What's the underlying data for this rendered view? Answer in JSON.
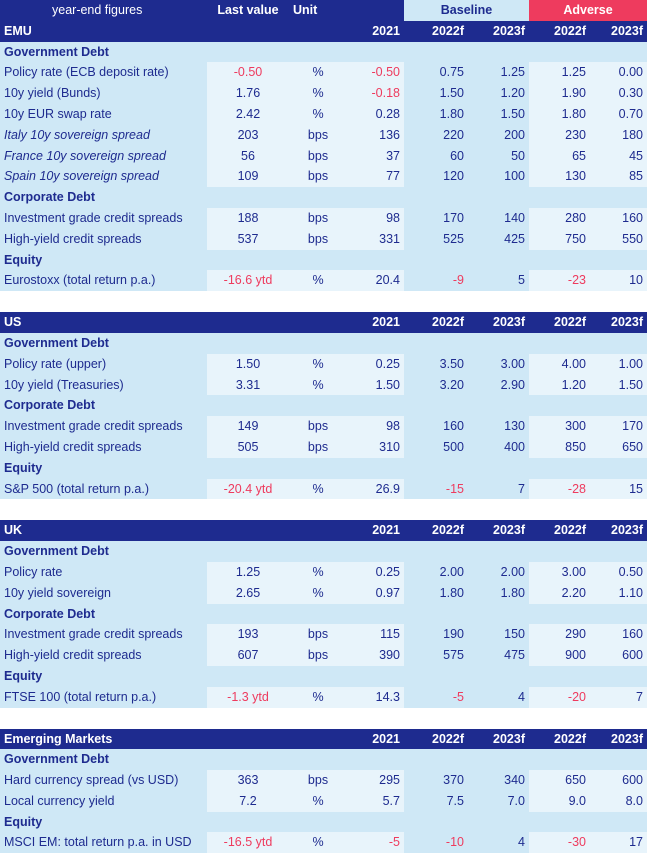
{
  "header": {
    "label": "year-end figures",
    "last_value": "Last value",
    "unit": "Unit",
    "baseline": "Baseline",
    "adverse": "Adverse"
  },
  "colors": {
    "navy": "#1e2b8f",
    "light_blue": "#cfe8f6",
    "pale_blue": "#e8f4fb",
    "red": "#ee3b5e"
  },
  "sections": [
    {
      "name": "EMU",
      "cols": [
        "2021",
        "2022f",
        "2023f",
        "2022f",
        "2023f"
      ],
      "groups": [
        {
          "label": "Government Debt",
          "rows": [
            {
              "label": "Policy rate (ECB deposit rate)",
              "italic": false,
              "values": [
                "-0.50",
                "%",
                "-0.50",
                "0.75",
                "1.25",
                "1.25",
                "0.00"
              ],
              "neg": [
                true,
                false,
                true,
                false,
                false,
                false,
                false
              ]
            },
            {
              "label": "10y yield (Bunds)",
              "italic": false,
              "values": [
                "1.76",
                "%",
                "-0.18",
                "1.50",
                "1.20",
                "1.90",
                "0.30"
              ],
              "neg": [
                false,
                false,
                true,
                false,
                false,
                false,
                false
              ]
            },
            {
              "label": "10y EUR swap rate",
              "italic": false,
              "values": [
                "2.42",
                "%",
                "0.28",
                "1.80",
                "1.50",
                "1.80",
                "0.70"
              ],
              "neg": [
                false,
                false,
                false,
                false,
                false,
                false,
                false
              ]
            },
            {
              "label": "Italy 10y sovereign spread",
              "italic": true,
              "values": [
                "203",
                "bps",
                "136",
                "220",
                "200",
                "230",
                "180"
              ],
              "neg": [
                false,
                false,
                false,
                false,
                false,
                false,
                false
              ]
            },
            {
              "label": "France 10y sovereign spread",
              "italic": true,
              "values": [
                "56",
                "bps",
                "37",
                "60",
                "50",
                "65",
                "45"
              ],
              "neg": [
                false,
                false,
                false,
                false,
                false,
                false,
                false
              ]
            },
            {
              "label": "Spain 10y sovereign spread",
              "italic": true,
              "values": [
                "109",
                "bps",
                "77",
                "120",
                "100",
                "130",
                "85"
              ],
              "neg": [
                false,
                false,
                false,
                false,
                false,
                false,
                false
              ]
            }
          ]
        },
        {
          "label": "Corporate Debt",
          "rows": [
            {
              "label": "Investment grade credit spreads",
              "italic": false,
              "values": [
                "188",
                "bps",
                "98",
                "170",
                "140",
                "280",
                "160"
              ],
              "neg": [
                false,
                false,
                false,
                false,
                false,
                false,
                false
              ]
            },
            {
              "label": "High-yield credit spreads",
              "italic": false,
              "values": [
                "537",
                "bps",
                "331",
                "525",
                "425",
                "750",
                "550"
              ],
              "neg": [
                false,
                false,
                false,
                false,
                false,
                false,
                false
              ]
            }
          ]
        },
        {
          "label": "Equity",
          "rows": [
            {
              "label": "Eurostoxx (total return p.a.)",
              "italic": false,
              "values": [
                "-16.6 ytd",
                "%",
                "20.4",
                "-9",
                "5",
                "-23",
                "10"
              ],
              "neg": [
                true,
                false,
                false,
                true,
                false,
                true,
                false
              ]
            }
          ]
        }
      ]
    },
    {
      "name": "US",
      "cols": [
        "2021",
        "2022f",
        "2023f",
        "2022f",
        "2023f"
      ],
      "groups": [
        {
          "label": "Government Debt",
          "rows": [
            {
              "label": "Policy rate (upper)",
              "italic": false,
              "values": [
                "1.50",
                "%",
                "0.25",
                "3.50",
                "3.00",
                "4.00",
                "1.00"
              ],
              "neg": [
                false,
                false,
                false,
                false,
                false,
                false,
                false
              ]
            },
            {
              "label": "10y yield (Treasuries)",
              "italic": false,
              "values": [
                "3.31",
                "%",
                "1.50",
                "3.20",
                "2.90",
                "1.20",
                "1.50"
              ],
              "neg": [
                false,
                false,
                false,
                false,
                false,
                false,
                false
              ]
            }
          ]
        },
        {
          "label": "Corporate Debt",
          "rows": [
            {
              "label": "Investment grade credit spreads",
              "italic": false,
              "values": [
                "149",
                "bps",
                "98",
                "160",
                "130",
                "300",
                "170"
              ],
              "neg": [
                false,
                false,
                false,
                false,
                false,
                false,
                false
              ]
            },
            {
              "label": "High-yield credit spreads",
              "italic": false,
              "values": [
                "505",
                "bps",
                "310",
                "500",
                "400",
                "850",
                "650"
              ],
              "neg": [
                false,
                false,
                false,
                false,
                false,
                false,
                false
              ]
            }
          ]
        },
        {
          "label": "Equity",
          "rows": [
            {
              "label": "S&P 500 (total return p.a.)",
              "italic": false,
              "values": [
                "-20.4 ytd",
                "%",
                "26.9",
                "-15",
                "7",
                "-28",
                "15"
              ],
              "neg": [
                true,
                false,
                false,
                true,
                false,
                true,
                false
              ]
            }
          ]
        }
      ]
    },
    {
      "name": "UK",
      "cols": [
        "2021",
        "2022f",
        "2023f",
        "2022f",
        "2023f"
      ],
      "groups": [
        {
          "label": "Government Debt",
          "rows": [
            {
              "label": "Policy rate",
              "italic": false,
              "values": [
                "1.25",
                "%",
                "0.25",
                "2.00",
                "2.00",
                "3.00",
                "0.50"
              ],
              "neg": [
                false,
                false,
                false,
                false,
                false,
                false,
                false
              ]
            },
            {
              "label": "10y yield sovereign",
              "italic": false,
              "values": [
                "2.65",
                "%",
                "0.97",
                "1.80",
                "1.80",
                "2.20",
                "1.10"
              ],
              "neg": [
                false,
                false,
                false,
                false,
                false,
                false,
                false
              ]
            }
          ]
        },
        {
          "label": "Corporate Debt",
          "rows": [
            {
              "label": "Investment grade credit spreads",
              "italic": false,
              "values": [
                "193",
                "bps",
                "115",
                "190",
                "150",
                "290",
                "160"
              ],
              "neg": [
                false,
                false,
                false,
                false,
                false,
                false,
                false
              ]
            },
            {
              "label": "High-yield credit spreads",
              "italic": false,
              "values": [
                "607",
                "bps",
                "390",
                "575",
                "475",
                "900",
                "600"
              ],
              "neg": [
                false,
                false,
                false,
                false,
                false,
                false,
                false
              ]
            }
          ]
        },
        {
          "label": "Equity",
          "rows": [
            {
              "label": "FTSE 100 (total return p.a.)",
              "italic": false,
              "values": [
                "-1.3 ytd",
                "%",
                "14.3",
                "-5",
                "4",
                "-20",
                "7"
              ],
              "neg": [
                true,
                false,
                false,
                true,
                false,
                true,
                false
              ]
            }
          ]
        }
      ]
    },
    {
      "name": "Emerging Markets",
      "cols": [
        "2021",
        "2022f",
        "2023f",
        "2022f",
        "2023f"
      ],
      "groups": [
        {
          "label": "Government Debt",
          "rows": [
            {
              "label": "Hard currency spread (vs USD)",
              "italic": false,
              "values": [
                "363",
                "bps",
                "295",
                "370",
                "340",
                "650",
                "600"
              ],
              "neg": [
                false,
                false,
                false,
                false,
                false,
                false,
                false
              ]
            },
            {
              "label": "Local currency yield",
              "italic": false,
              "values": [
                "7.2",
                "%",
                "5.7",
                "7.5",
                "7.0",
                "9.0",
                "8.0"
              ],
              "neg": [
                false,
                false,
                false,
                false,
                false,
                false,
                false
              ]
            }
          ]
        },
        {
          "label": "Equity",
          "rows": [
            {
              "label": "MSCI EM: total return p.a. in USD",
              "italic": false,
              "values": [
                "-16.5 ytd",
                "%",
                "-5",
                "-10",
                "4",
                "-30",
                "17"
              ],
              "neg": [
                true,
                false,
                true,
                true,
                false,
                true,
                false
              ]
            }
          ]
        }
      ]
    }
  ]
}
